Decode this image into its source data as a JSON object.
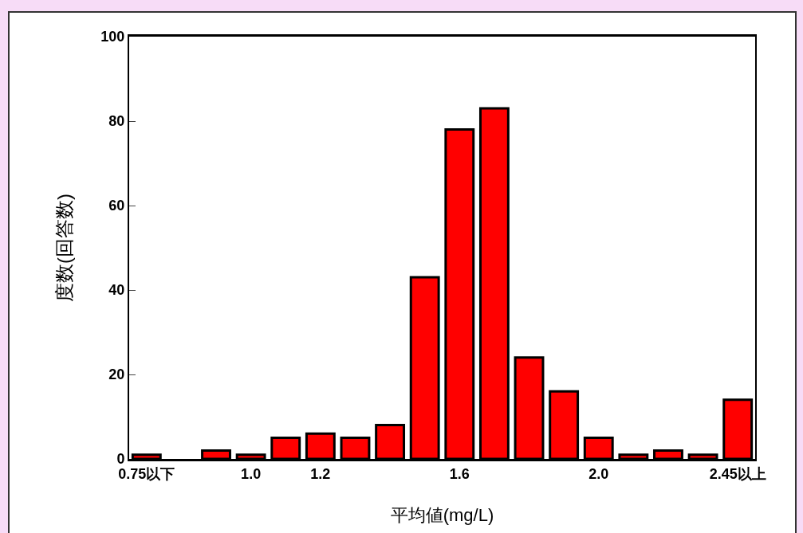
{
  "chart_data": {
    "type": "bar",
    "categories": [
      "0.75以下",
      null,
      null,
      "1.0",
      null,
      "1.2",
      null,
      null,
      null,
      "1.6",
      null,
      null,
      null,
      "2.0",
      null,
      null,
      null,
      "2.45以上"
    ],
    "values": [
      1,
      0,
      2,
      1,
      5,
      6,
      5,
      8,
      43,
      78,
      83,
      24,
      16,
      5,
      1,
      2,
      1,
      14
    ],
    "color": "#ff0000",
    "xlabel": "平均値(mg/L)",
    "ylabel": "度数(回答数)",
    "ylim": [
      0,
      100
    ],
    "yticks": [
      0,
      20,
      40,
      60,
      80,
      100
    ],
    "grid": false,
    "legend": false
  }
}
